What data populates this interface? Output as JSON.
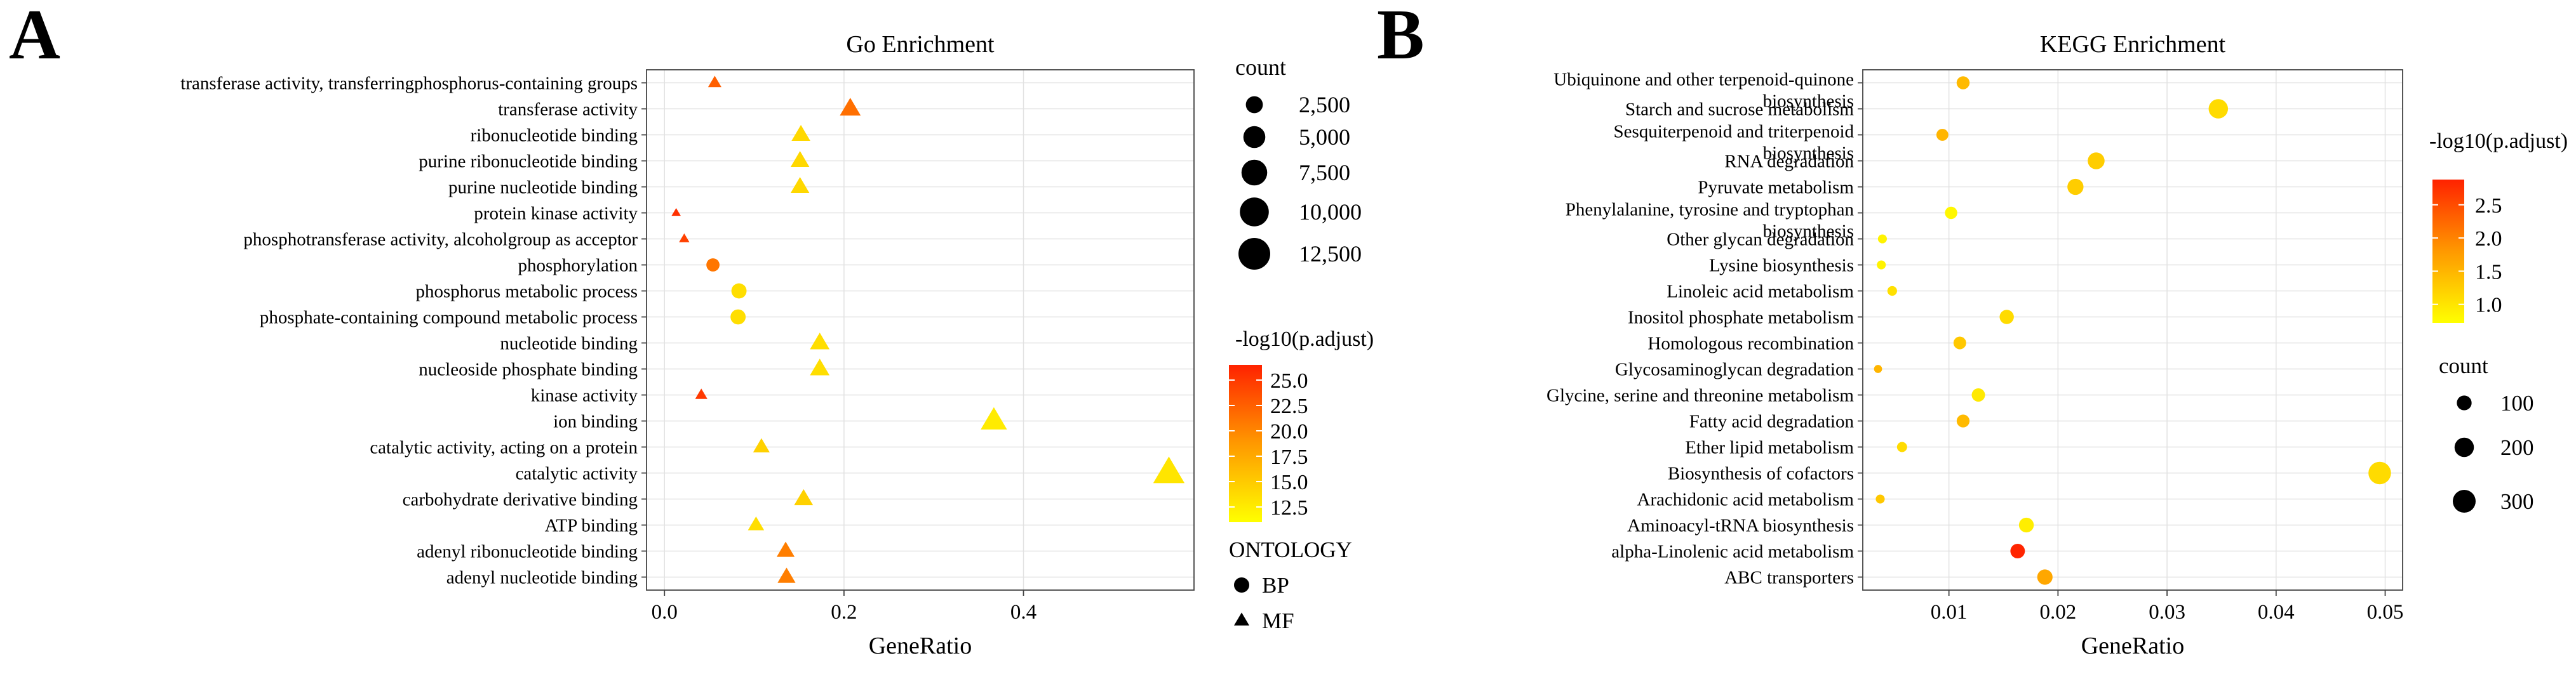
{
  "panels": [
    {
      "letter": "A",
      "chart_data": {
        "type": "scatter",
        "title": "Go Enrichment",
        "xlabel": "GeneRatio",
        "ylabel": "",
        "xlim": [
          -0.02,
          0.59
        ],
        "xticks": [
          0.0,
          0.2,
          0.4
        ],
        "xtick_labels": [
          "0.0",
          "0.2",
          "0.4"
        ],
        "grid": true,
        "categories": [
          "transferase activity, transferringphosphorus-containing groups",
          "transferase activity",
          "ribonucleotide binding",
          "purine ribonucleotide binding",
          "purine nucleotide binding",
          "protein kinase activity",
          "phosphotransferase activity, alcoholgroup as acceptor",
          "phosphorylation",
          "phosphorus metabolic process",
          "phosphate-containing compound metabolic process",
          "nucleotide binding",
          "nucleoside phosphate binding",
          "kinase activity",
          "ion binding",
          "catalytic activity, acting on a protein",
          "catalytic activity",
          "carbohydrate derivative binding",
          "ATP binding",
          "adenyl ribonucleotide binding",
          "adenyl nucleotide binding"
        ],
        "points": [
          {
            "term": "transferase activity, transferringphosphorus-containing groups",
            "gene_ratio": 0.056,
            "count": 1200,
            "neg_log10_padj": 22.5,
            "ontology": "MF"
          },
          {
            "term": "transferase activity",
            "gene_ratio": 0.207,
            "count": 4400,
            "neg_log10_padj": 21.5,
            "ontology": "MF"
          },
          {
            "term": "ribonucleotide binding",
            "gene_ratio": 0.152,
            "count": 3300,
            "neg_log10_padj": 14.0,
            "ontology": "MF"
          },
          {
            "term": "purine ribonucleotide binding",
            "gene_ratio": 0.151,
            "count": 3250,
            "neg_log10_padj": 14.0,
            "ontology": "MF"
          },
          {
            "term": "purine nucleotide binding",
            "gene_ratio": 0.151,
            "count": 3250,
            "neg_log10_padj": 14.0,
            "ontology": "MF"
          },
          {
            "term": "protein kinase activity",
            "gene_ratio": 0.013,
            "count": 300,
            "neg_log10_padj": 25.5,
            "ontology": "MF"
          },
          {
            "term": "phosphotransferase activity, alcoholgroup as acceptor",
            "gene_ratio": 0.022,
            "count": 500,
            "neg_log10_padj": 24.5,
            "ontology": "MF"
          },
          {
            "term": "phosphorylation",
            "gene_ratio": 0.054,
            "count": 1150,
            "neg_log10_padj": 21.0,
            "ontology": "BP"
          },
          {
            "term": "phosphorus metabolic process",
            "gene_ratio": 0.083,
            "count": 1800,
            "neg_log10_padj": 13.5,
            "ontology": "BP"
          },
          {
            "term": "phosphate-containing compound metabolic process",
            "gene_ratio": 0.082,
            "count": 1780,
            "neg_log10_padj": 13.5,
            "ontology": "BP"
          },
          {
            "term": "nucleotide binding",
            "gene_ratio": 0.173,
            "count": 3700,
            "neg_log10_padj": 13.5,
            "ontology": "MF"
          },
          {
            "term": "nucleoside phosphate binding",
            "gene_ratio": 0.173,
            "count": 3700,
            "neg_log10_padj": 13.5,
            "ontology": "MF"
          },
          {
            "term": "kinase activity",
            "gene_ratio": 0.041,
            "count": 900,
            "neg_log10_padj": 25.0,
            "ontology": "MF"
          },
          {
            "term": "ion binding",
            "gene_ratio": 0.367,
            "count": 7900,
            "neg_log10_padj": 12.5,
            "ontology": "MF"
          },
          {
            "term": "catalytic activity, acting on a protein",
            "gene_ratio": 0.108,
            "count": 2350,
            "neg_log10_padj": 14.5,
            "ontology": "MF"
          },
          {
            "term": "catalytic activity",
            "gene_ratio": 0.562,
            "count": 12100,
            "neg_log10_padj": 13.0,
            "ontology": "MF"
          },
          {
            "term": "carbohydrate derivative binding",
            "gene_ratio": 0.155,
            "count": 3350,
            "neg_log10_padj": 14.5,
            "ontology": "MF"
          },
          {
            "term": "ATP binding",
            "gene_ratio": 0.102,
            "count": 2200,
            "neg_log10_padj": 13.5,
            "ontology": "MF"
          },
          {
            "term": "adenyl ribonucleotide binding",
            "gene_ratio": 0.135,
            "count": 2900,
            "neg_log10_padj": 20.5,
            "ontology": "MF"
          },
          {
            "term": "adenyl nucleotide binding",
            "gene_ratio": 0.136,
            "count": 2950,
            "neg_log10_padj": 20.5,
            "ontology": "MF"
          }
        ],
        "size_legend": {
          "title": "count",
          "values": [
            2500,
            5000,
            7500,
            10000,
            12500
          ],
          "labels": [
            "2,500",
            "5,000",
            "7,500",
            "10,000",
            "12,500"
          ]
        },
        "color_legend": {
          "title": "-log10(p.adjust)",
          "min": 11.0,
          "max": 26.5,
          "ticks": [
            25.0,
            22.5,
            20.0,
            17.5,
            15.0,
            12.5
          ],
          "tick_labels": [
            "25.0",
            "22.5",
            "20.0",
            "17.5",
            "15.0",
            "12.5"
          ],
          "low_color": "#ffff00",
          "mid_color": "#ff9900",
          "high_color": "#ff2200"
        },
        "shape_legend": {
          "title": "ONTOLOGY",
          "items": [
            {
              "label": "BP",
              "shape": "circle"
            },
            {
              "label": "MF",
              "shape": "triangle"
            }
          ]
        }
      }
    },
    {
      "letter": "B",
      "chart_data": {
        "type": "scatter",
        "title": "KEGG Enrichment",
        "xlabel": "GeneRatio",
        "ylabel": "",
        "xlim": [
          0.0021,
          0.0516
        ],
        "xticks": [
          0.01,
          0.02,
          0.03,
          0.04,
          0.05
        ],
        "xtick_labels": [
          "0.01",
          "0.02",
          "0.03",
          "0.04",
          "0.05"
        ],
        "grid": true,
        "categories": [
          "Ubiquinone and other terpenoid-quinone biosynthesis",
          "Starch and sucrose metabolism",
          "Sesquiterpenoid and triterpenoid biosynthesis",
          "RNA degradation",
          "Pyruvate metabolism",
          "Phenylalanine, tyrosine and tryptophan biosynthesis",
          "Other glycan degradation",
          "Lysine biosynthesis",
          "Linoleic acid metabolism",
          "Inositol phosphate metabolism",
          "Homologous recombination",
          "Glycosaminoglycan degradation",
          "Glycine, serine and threonine metabolism",
          "Fatty acid degradation",
          "Ether lipid metabolism",
          "Biosynthesis of cofactors",
          "Arachidonic acid metabolism",
          "Aminoacyl-tRNA biosynthesis",
          "alpha-Linolenic acid metabolism",
          "ABC transporters"
        ],
        "category_label_lines": [
          [
            "Ubiquinone and other terpenoid-quinone",
            "biosynthesis"
          ],
          [
            "Starch and sucrose metabolism"
          ],
          [
            "Sesquiterpenoid and triterpenoid",
            "biosynthesis"
          ],
          [
            "RNA degradation"
          ],
          [
            "Pyruvate metabolism"
          ],
          [
            "Phenylalanine, tyrosine and tryptophan",
            "biosynthesis"
          ],
          [
            "Other glycan degradation"
          ],
          [
            "Lysine biosynthesis"
          ],
          [
            "Linoleic acid metabolism"
          ],
          [
            "Inositol phosphate metabolism"
          ],
          [
            "Homologous recombination"
          ],
          [
            "Glycosaminoglycan degradation"
          ],
          [
            "Glycine, serine and threonine metabolism"
          ],
          [
            "Fatty acid degradation"
          ],
          [
            "Ether lipid metabolism"
          ],
          [
            "Biosynthesis of cofactors"
          ],
          [
            "Arachidonic acid metabolism"
          ],
          [
            "Aminoacyl-tRNA biosynthesis"
          ],
          [
            "alpha-Linolenic acid metabolism"
          ],
          [
            "ABC transporters"
          ]
        ],
        "points": [
          {
            "term": "Ubiquinone and other terpenoid-quinone biosynthesis",
            "gene_ratio": 0.0113,
            "count": 70,
            "neg_log10_padj": 1.45
          },
          {
            "term": "Starch and sucrose metabolism",
            "gene_ratio": 0.0347,
            "count": 200,
            "neg_log10_padj": 1.1
          },
          {
            "term": "Sesquiterpenoid and triterpenoid biosynthesis",
            "gene_ratio": 0.0094,
            "count": 55,
            "neg_log10_padj": 1.5
          },
          {
            "term": "RNA degradation",
            "gene_ratio": 0.0235,
            "count": 140,
            "neg_log10_padj": 1.25
          },
          {
            "term": "Pyruvate metabolism",
            "gene_ratio": 0.0216,
            "count": 125,
            "neg_log10_padj": 1.25
          },
          {
            "term": "Phenylalanine, tyrosine and tryptophan biosynthesis",
            "gene_ratio": 0.0102,
            "count": 60,
            "neg_log10_padj": 0.8
          },
          {
            "term": "Other glycan degradation",
            "gene_ratio": 0.0039,
            "count": 22,
            "neg_log10_padj": 0.85
          },
          {
            "term": "Lysine biosynthesis",
            "gene_ratio": 0.0038,
            "count": 22,
            "neg_log10_padj": 0.85
          },
          {
            "term": "Linoleic acid metabolism",
            "gene_ratio": 0.0048,
            "count": 28,
            "neg_log10_padj": 1.05
          },
          {
            "term": "Inositol phosphate metabolism",
            "gene_ratio": 0.0153,
            "count": 90,
            "neg_log10_padj": 1.1
          },
          {
            "term": "Homologous recombination",
            "gene_ratio": 0.011,
            "count": 65,
            "neg_log10_padj": 1.3
          },
          {
            "term": "Glycosaminoglycan degradation",
            "gene_ratio": 0.0035,
            "count": 15,
            "neg_log10_padj": 1.5
          },
          {
            "term": "Glycine, serine and threonine metabolism",
            "gene_ratio": 0.0127,
            "count": 75,
            "neg_log10_padj": 0.95
          },
          {
            "term": "Fatty acid degradation",
            "gene_ratio": 0.0113,
            "count": 68,
            "neg_log10_padj": 1.45
          },
          {
            "term": "Ether lipid metabolism",
            "gene_ratio": 0.0057,
            "count": 33,
            "neg_log10_padj": 1.1
          },
          {
            "term": "Biosynthesis of cofactors",
            "gene_ratio": 0.0495,
            "count": 290,
            "neg_log10_padj": 1.1
          },
          {
            "term": "Arachidonic acid metabolism",
            "gene_ratio": 0.0037,
            "count": 22,
            "neg_log10_padj": 1.3
          },
          {
            "term": "Aminoacyl-tRNA biosynthesis",
            "gene_ratio": 0.0171,
            "count": 100,
            "neg_log10_padj": 0.9
          },
          {
            "term": "alpha-Linolenic acid metabolism",
            "gene_ratio": 0.0163,
            "count": 95,
            "neg_log10_padj": 2.85
          },
          {
            "term": "ABC transporters",
            "gene_ratio": 0.0188,
            "count": 110,
            "neg_log10_padj": 1.65
          }
        ],
        "size_legend": {
          "title": "count",
          "values": [
            100,
            200,
            300
          ],
          "labels": [
            "100",
            "200",
            "300"
          ]
        },
        "color_legend": {
          "title": "-log10(p.adjust)",
          "min": 0.72,
          "max": 2.88,
          "ticks": [
            2.5,
            2.0,
            1.5,
            1.0
          ],
          "tick_labels": [
            "2.5",
            "2.0",
            "1.5",
            "1.0"
          ],
          "low_color": "#ffff00",
          "mid_color": "#ff9900",
          "high_color": "#ff2200"
        }
      }
    }
  ]
}
